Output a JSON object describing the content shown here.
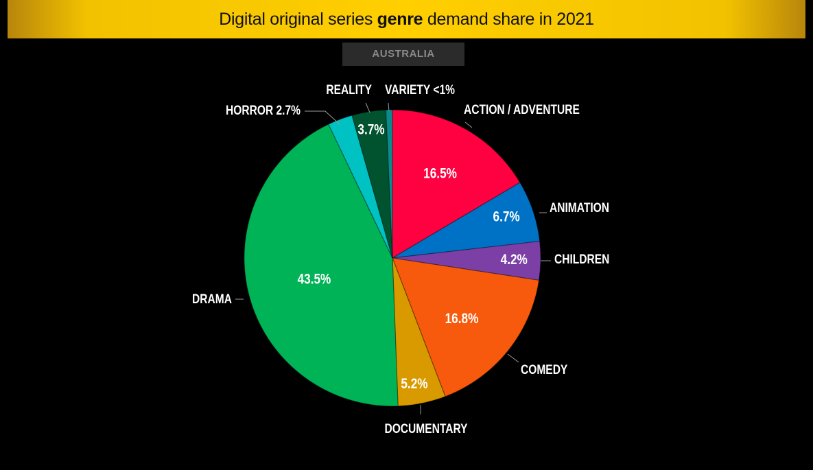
{
  "header": {
    "title_pre": "Digital original series ",
    "title_bold": "genre",
    "title_post": " demand share in 2021",
    "region": "AUSTRALIA"
  },
  "chart_data": {
    "type": "pie",
    "title": "Digital original series genre demand share in 2021",
    "subtitle": "AUSTRALIA",
    "slices": [
      {
        "category": "ACTION / ADVENTURE",
        "value": 16.5,
        "label": "16.5%",
        "color": "#ff0040"
      },
      {
        "category": "ANIMATION",
        "value": 6.7,
        "label": "6.7%",
        "color": "#0072c6"
      },
      {
        "category": "CHILDREN",
        "value": 4.2,
        "label": "4.2%",
        "color": "#7b3fa6"
      },
      {
        "category": "COMEDY",
        "value": 16.8,
        "label": "16.8%",
        "color": "#f75a0c"
      },
      {
        "category": "DOCUMENTARY",
        "value": 5.2,
        "label": "5.2%",
        "color": "#d99a00"
      },
      {
        "category": "DRAMA",
        "value": 43.5,
        "label": "43.5%",
        "color": "#00b356"
      },
      {
        "category": "HORROR",
        "value": 2.7,
        "label": "2.7%",
        "color": "#00c2c2"
      },
      {
        "category": "REALITY",
        "value": 3.7,
        "label": "3.7%",
        "color": "#00532e"
      },
      {
        "category": "VARIETY",
        "value": 0.7,
        "label": "<1%",
        "color": "#0a8a8a"
      }
    ]
  }
}
